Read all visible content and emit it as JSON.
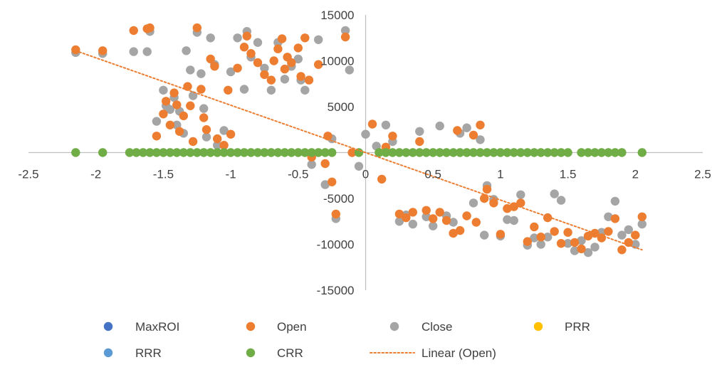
{
  "chart_data": {
    "type": "scatter",
    "title": "",
    "xlabel": "",
    "ylabel": "",
    "xlim": [
      -2.5,
      2.5
    ],
    "ylim": [
      -15000,
      15000
    ],
    "x_ticks": [
      -2.5,
      -2,
      -1.5,
      -1,
      -0.5,
      0,
      0.5,
      1,
      1.5,
      2,
      2.5
    ],
    "x_tick_labels": [
      "-2.5",
      "-2",
      "-1.5",
      "-1",
      "-0.5",
      "0",
      "0.5",
      "1",
      "1.5",
      "2",
      "2.5"
    ],
    "y_ticks": [
      -15000,
      -10000,
      -5000,
      0,
      5000,
      10000,
      15000
    ],
    "y_tick_labels": [
      "-15000",
      "-10000",
      "-5000",
      "",
      "5000",
      "10000",
      "15000"
    ],
    "grid": false,
    "legend": "bottom",
    "series": [
      {
        "name": "MaxROI",
        "color": "#4472C4",
        "points": []
      },
      {
        "name": "Open",
        "color": "#ED7D31",
        "points": [
          [
            -2.15,
            11200
          ],
          [
            -1.95,
            11100
          ],
          [
            -1.72,
            13300
          ],
          [
            -1.62,
            13500
          ],
          [
            -1.6,
            13600
          ],
          [
            -1.55,
            1800
          ],
          [
            -1.5,
            4200
          ],
          [
            -1.48,
            5600
          ],
          [
            -1.45,
            3000
          ],
          [
            -1.42,
            6500
          ],
          [
            -1.4,
            5200
          ],
          [
            -1.38,
            2300
          ],
          [
            -1.35,
            4000
          ],
          [
            -1.32,
            7200
          ],
          [
            -1.3,
            5100
          ],
          [
            -1.28,
            1200
          ],
          [
            -1.25,
            13600
          ],
          [
            -1.22,
            6900
          ],
          [
            -1.2,
            3800
          ],
          [
            -1.18,
            2500
          ],
          [
            -1.15,
            10200
          ],
          [
            -1.12,
            9400
          ],
          [
            -1.1,
            1500
          ],
          [
            -1.05,
            800
          ],
          [
            -1.02,
            6800
          ],
          [
            -1.0,
            2000
          ],
          [
            -0.95,
            9200
          ],
          [
            -0.9,
            11500
          ],
          [
            -0.88,
            12700
          ],
          [
            -0.85,
            10800
          ],
          [
            -0.8,
            9800
          ],
          [
            -0.75,
            8500
          ],
          [
            -0.7,
            7900
          ],
          [
            -0.68,
            10000
          ],
          [
            -0.65,
            11300
          ],
          [
            -0.62,
            12400
          ],
          [
            -0.6,
            9100
          ],
          [
            -0.58,
            10400
          ],
          [
            -0.55,
            9800
          ],
          [
            -0.5,
            11400
          ],
          [
            -0.48,
            8300
          ],
          [
            -0.45,
            12500
          ],
          [
            -0.42,
            7900
          ],
          [
            -0.4,
            -500
          ],
          [
            -0.35,
            9600
          ],
          [
            -0.3,
            -1200
          ],
          [
            -0.28,
            1800
          ],
          [
            -0.25,
            -3200
          ],
          [
            -0.22,
            -6700
          ],
          [
            -0.15,
            12600
          ],
          [
            -0.1,
            0
          ],
          [
            0.05,
            3100
          ],
          [
            0.12,
            -2900
          ],
          [
            0.15,
            600
          ],
          [
            0.2,
            1800
          ],
          [
            0.25,
            -6700
          ],
          [
            0.3,
            -7100
          ],
          [
            0.35,
            -6500
          ],
          [
            0.4,
            1200
          ],
          [
            0.45,
            -6300
          ],
          [
            0.5,
            -7200
          ],
          [
            0.55,
            -6500
          ],
          [
            0.6,
            -7400
          ],
          [
            0.65,
            -8800
          ],
          [
            0.68,
            2400
          ],
          [
            0.7,
            -8500
          ],
          [
            0.75,
            -6900
          ],
          [
            0.8,
            1900
          ],
          [
            0.82,
            -7600
          ],
          [
            0.85,
            3000
          ],
          [
            0.88,
            -5000
          ],
          [
            0.9,
            -4000
          ],
          [
            0.95,
            -5500
          ],
          [
            1.0,
            -8900
          ],
          [
            1.05,
            -6100
          ],
          [
            1.1,
            -5900
          ],
          [
            1.15,
            -5500
          ],
          [
            1.2,
            -9700
          ],
          [
            1.25,
            -8100
          ],
          [
            1.3,
            -9200
          ],
          [
            1.35,
            -7100
          ],
          [
            1.4,
            -8600
          ],
          [
            1.45,
            -9900
          ],
          [
            1.5,
            -8700
          ],
          [
            1.55,
            -9800
          ],
          [
            1.6,
            -10500
          ],
          [
            1.65,
            -9100
          ],
          [
            1.7,
            -8800
          ],
          [
            1.75,
            -9300
          ],
          [
            1.8,
            -8600
          ],
          [
            1.85,
            -7200
          ],
          [
            1.9,
            -10600
          ],
          [
            1.95,
            -9800
          ],
          [
            2.0,
            -9000
          ],
          [
            2.05,
            -7000
          ]
        ]
      },
      {
        "name": "Close",
        "color": "#A5A5A5",
        "points": [
          [
            -2.15,
            10900
          ],
          [
            -1.95,
            10800
          ],
          [
            -1.72,
            11000
          ],
          [
            -1.62,
            11000
          ],
          [
            -1.6,
            13200
          ],
          [
            -1.55,
            3400
          ],
          [
            -1.5,
            6800
          ],
          [
            -1.48,
            5100
          ],
          [
            -1.45,
            4700
          ],
          [
            -1.42,
            6000
          ],
          [
            -1.4,
            3000
          ],
          [
            -1.38,
            4500
          ],
          [
            -1.35,
            2100
          ],
          [
            -1.33,
            11100
          ],
          [
            -1.3,
            9000
          ],
          [
            -1.28,
            6200
          ],
          [
            -1.25,
            13100
          ],
          [
            -1.22,
            8600
          ],
          [
            -1.2,
            4800
          ],
          [
            -1.18,
            1700
          ],
          [
            -1.15,
            12500
          ],
          [
            -1.12,
            9600
          ],
          [
            -1.1,
            800
          ],
          [
            -1.05,
            2400
          ],
          [
            -1.0,
            8800
          ],
          [
            -0.95,
            12500
          ],
          [
            -0.9,
            6900
          ],
          [
            -0.88,
            13200
          ],
          [
            -0.85,
            10400
          ],
          [
            -0.8,
            12000
          ],
          [
            -0.75,
            9200
          ],
          [
            -0.7,
            6800
          ],
          [
            -0.65,
            12000
          ],
          [
            -0.6,
            8000
          ],
          [
            -0.55,
            9400
          ],
          [
            -0.5,
            10200
          ],
          [
            -0.48,
            7900
          ],
          [
            -0.45,
            6800
          ],
          [
            -0.4,
            -1300
          ],
          [
            -0.35,
            12300
          ],
          [
            -0.3,
            -3500
          ],
          [
            -0.25,
            1500
          ],
          [
            -0.22,
            -7200
          ],
          [
            -0.15,
            13300
          ],
          [
            -0.12,
            9000
          ],
          [
            -0.05,
            -1500
          ],
          [
            0.0,
            2000
          ],
          [
            0.08,
            700
          ],
          [
            0.15,
            3000
          ],
          [
            0.2,
            1200
          ],
          [
            0.25,
            -7500
          ],
          [
            0.3,
            -6800
          ],
          [
            0.35,
            -7800
          ],
          [
            0.4,
            2300
          ],
          [
            0.45,
            -7000
          ],
          [
            0.5,
            -8000
          ],
          [
            0.55,
            2900
          ],
          [
            0.6,
            -6900
          ],
          [
            0.65,
            -7600
          ],
          [
            0.7,
            2100
          ],
          [
            0.75,
            2700
          ],
          [
            0.8,
            -5500
          ],
          [
            0.85,
            1400
          ],
          [
            0.88,
            -9000
          ],
          [
            0.9,
            -3600
          ],
          [
            0.95,
            -5100
          ],
          [
            1.0,
            -9100
          ],
          [
            1.05,
            -7300
          ],
          [
            1.1,
            -7400
          ],
          [
            1.15,
            -4600
          ],
          [
            1.2,
            -10100
          ],
          [
            1.25,
            -9300
          ],
          [
            1.3,
            -10000
          ],
          [
            1.35,
            -9200
          ],
          [
            1.4,
            -4500
          ],
          [
            1.45,
            -5200
          ],
          [
            1.5,
            -9900
          ],
          [
            1.55,
            -10700
          ],
          [
            1.6,
            -9600
          ],
          [
            1.65,
            -10900
          ],
          [
            1.7,
            -10300
          ],
          [
            1.75,
            -8700
          ],
          [
            1.8,
            -7000
          ],
          [
            1.85,
            -5300
          ],
          [
            1.9,
            -9000
          ],
          [
            1.95,
            -8400
          ],
          [
            2.0,
            -10000
          ],
          [
            2.05,
            -7800
          ]
        ]
      },
      {
        "name": "PRR",
        "color": "#FFC000",
        "points": []
      },
      {
        "name": "RRR",
        "color": "#5B9BD5",
        "points": []
      },
      {
        "name": "CRR",
        "color": "#70AD47",
        "points": [
          [
            -2.15,
            0
          ],
          [
            -1.95,
            0
          ],
          [
            -1.75,
            0
          ],
          [
            -1.7,
            0
          ],
          [
            -1.65,
            0
          ],
          [
            -1.6,
            0
          ],
          [
            -1.55,
            0
          ],
          [
            -1.5,
            0
          ],
          [
            -1.45,
            0
          ],
          [
            -1.4,
            0
          ],
          [
            -1.35,
            0
          ],
          [
            -1.3,
            0
          ],
          [
            -1.25,
            0
          ],
          [
            -1.2,
            0
          ],
          [
            -1.15,
            0
          ],
          [
            -1.1,
            0
          ],
          [
            -1.05,
            0
          ],
          [
            -1.0,
            0
          ],
          [
            -0.95,
            0
          ],
          [
            -0.9,
            0
          ],
          [
            -0.85,
            0
          ],
          [
            -0.8,
            0
          ],
          [
            -0.75,
            0
          ],
          [
            -0.7,
            0
          ],
          [
            -0.65,
            0
          ],
          [
            -0.6,
            0
          ],
          [
            -0.55,
            0
          ],
          [
            -0.5,
            0
          ],
          [
            -0.45,
            0
          ],
          [
            -0.4,
            0
          ],
          [
            -0.35,
            0
          ],
          [
            -0.3,
            0
          ],
          [
            -0.25,
            0
          ],
          [
            -0.05,
            0
          ],
          [
            0.1,
            0
          ],
          [
            0.15,
            0
          ],
          [
            0.2,
            0
          ],
          [
            0.25,
            0
          ],
          [
            0.3,
            0
          ],
          [
            0.35,
            0
          ],
          [
            0.4,
            0
          ],
          [
            0.45,
            0
          ],
          [
            0.5,
            0
          ],
          [
            0.55,
            0
          ],
          [
            0.6,
            0
          ],
          [
            0.65,
            0
          ],
          [
            0.7,
            0
          ],
          [
            0.75,
            0
          ],
          [
            0.8,
            0
          ],
          [
            0.85,
            0
          ],
          [
            0.9,
            0
          ],
          [
            0.95,
            0
          ],
          [
            1.0,
            0
          ],
          [
            1.05,
            0
          ],
          [
            1.1,
            0
          ],
          [
            1.15,
            0
          ],
          [
            1.2,
            0
          ],
          [
            1.25,
            0
          ],
          [
            1.3,
            0
          ],
          [
            1.35,
            0
          ],
          [
            1.4,
            0
          ],
          [
            1.45,
            0
          ],
          [
            1.5,
            0
          ],
          [
            1.6,
            0
          ],
          [
            1.65,
            0
          ],
          [
            1.7,
            0
          ],
          [
            1.75,
            0
          ],
          [
            1.8,
            0
          ],
          [
            1.85,
            0
          ],
          [
            1.9,
            0
          ],
          [
            2.05,
            0
          ]
        ]
      }
    ],
    "trendlines": [
      {
        "name": "Linear (Open)",
        "color": "#ED7D31",
        "style": "dotted",
        "x": [
          -2.15,
          2.05
        ],
        "y": [
          11100,
          -10600
        ]
      }
    ],
    "legend_entries": [
      {
        "label": "MaxROI",
        "color": "#4472C4",
        "marker": "circle"
      },
      {
        "label": "Open",
        "color": "#ED7D31",
        "marker": "circle"
      },
      {
        "label": "Close",
        "color": "#A5A5A5",
        "marker": "circle"
      },
      {
        "label": "PRR",
        "color": "#FFC000",
        "marker": "circle"
      },
      {
        "label": "RRR",
        "color": "#5B9BD5",
        "marker": "circle"
      },
      {
        "label": "CRR",
        "color": "#70AD47",
        "marker": "circle"
      },
      {
        "label": "Linear (Open)",
        "color": "#ED7D31",
        "marker": "dotted-line"
      }
    ]
  }
}
